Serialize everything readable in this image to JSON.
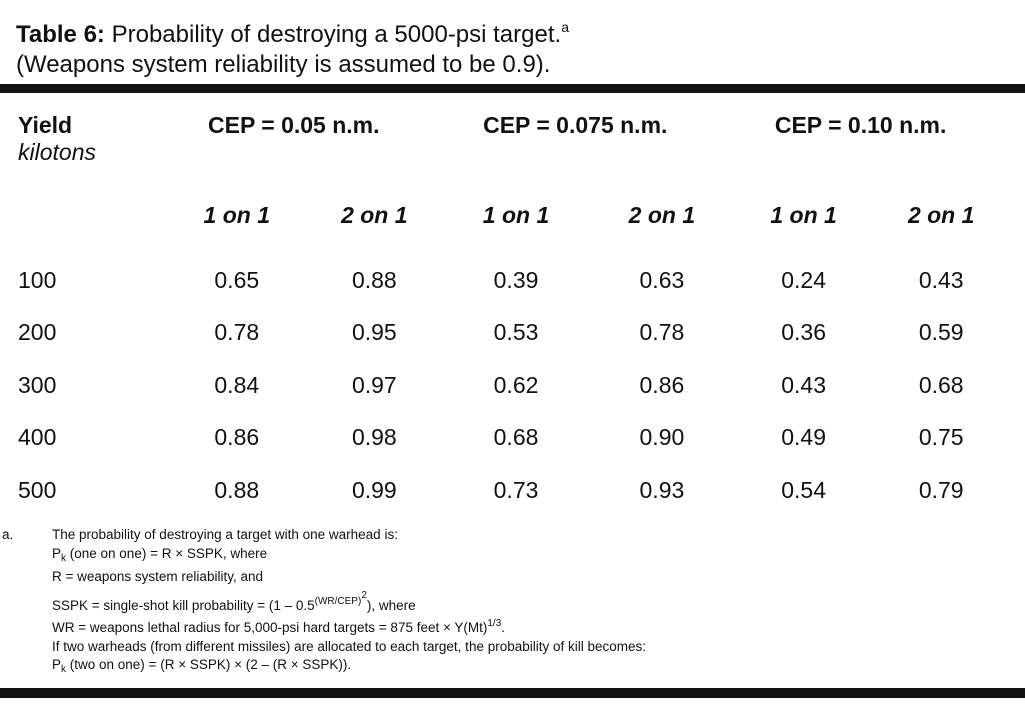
{
  "title": {
    "label": "Table 6:",
    "text": " Probability of destroying a 5000-psi target.",
    "footnote_mark": "a",
    "line2": "(Weapons system reliability is assumed to be 0.9)."
  },
  "header": {
    "yield": "Yield",
    "yield_unit": "kilotons",
    "cep": [
      "CEP = 0.05 n.m.",
      "CEP = 0.075 n.m.",
      "CEP = 0.10 n.m."
    ],
    "sub": [
      "1 on 1",
      "2 on 1",
      "1 on 1",
      "2 on 1",
      "1 on 1",
      "2 on 1"
    ]
  },
  "rows": [
    {
      "yield": "100",
      "v": [
        "0.65",
        "0.88",
        "0.39",
        "0.63",
        "0.24",
        "0.43"
      ]
    },
    {
      "yield": "200",
      "v": [
        "0.78",
        "0.95",
        "0.53",
        "0.78",
        "0.36",
        "0.59"
      ]
    },
    {
      "yield": "300",
      "v": [
        "0.84",
        "0.97",
        "0.62",
        "0.86",
        "0.43",
        "0.68"
      ]
    },
    {
      "yield": "400",
      "v": [
        "0.86",
        "0.98",
        "0.68",
        "0.90",
        "0.49",
        "0.75"
      ]
    },
    {
      "yield": "500",
      "v": [
        "0.88",
        "0.99",
        "0.73",
        "0.93",
        "0.54",
        "0.79"
      ]
    }
  ],
  "footnote": {
    "marker": "a.",
    "l1": "The probability of destroying a target with one warhead is:",
    "l2_p": "P",
    "l2_k": "k",
    "l2_rest": " (one on one) = R × SSPK, where",
    "l3": "R = weapons system reliability, and",
    "l4_a": "SSPK = single-shot kill probability = (1 – 0.5",
    "l4_sup": "(WR/CEP)",
    "l4_sup2": "2",
    "l4_b": "), where",
    "l5_a": "WR = weapons lethal radius for 5,000-psi hard targets = 875 feet × Y(Mt)",
    "l5_sup": "1/3",
    "l5_b": ".",
    "l6": "If two warheads (from different missiles) are allocated to each target, the probability of kill becomes:",
    "l7_p": "P",
    "l7_k": "k",
    "l7_rest": " (two on one) = (R × SSPK) × (2 – (R × SSPK))."
  }
}
